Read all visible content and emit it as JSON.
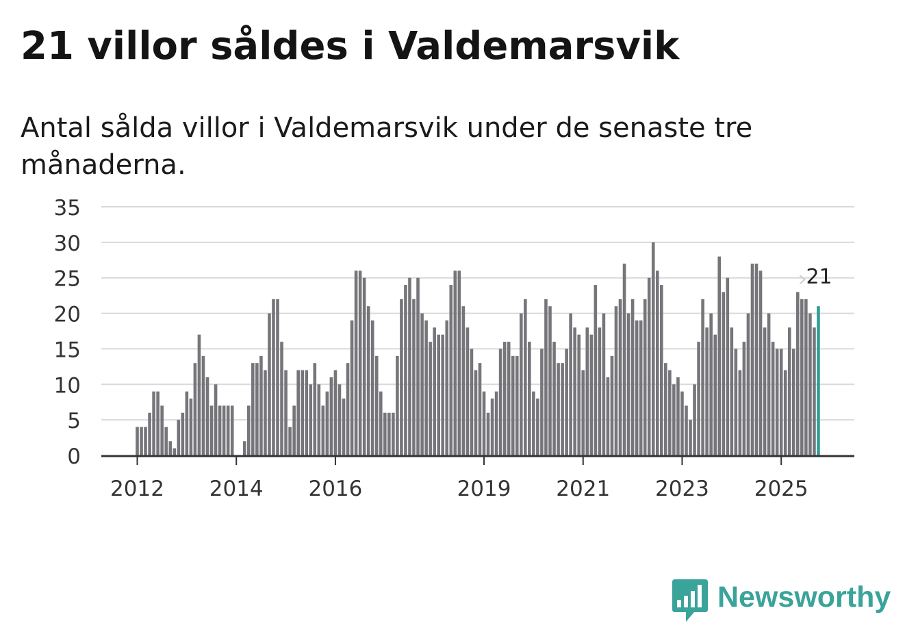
{
  "title": "21 villor såldes i Valdemarsvik",
  "subtitle": "Antal sålda villor i Valdemarsvik under de senaste tre månaderna.",
  "brand": {
    "name": "Newsworthy",
    "logo_icon": "bar-chart-bubble-icon"
  },
  "colors": {
    "bar": "#75757a",
    "highlight": "#2f9d95",
    "grid": "#d9d9d9",
    "axis": "#333333",
    "brand": "#3aa39a"
  },
  "chart_data": {
    "type": "bar",
    "title": "21 villor såldes i Valdemarsvik",
    "xlabel": "",
    "ylabel": "",
    "ylim": [
      0,
      35
    ],
    "yticks": [
      "0",
      "5",
      "10",
      "15",
      "20",
      "25",
      "30",
      "35"
    ],
    "x_start": 2012.0,
    "x_step_months": 1,
    "xticks": [
      {
        "label": "2012",
        "x": 2012.0
      },
      {
        "label": "2014",
        "x": 2014.0
      },
      {
        "label": "2016",
        "x": 2016.0
      },
      {
        "label": "2019",
        "x": 2019.0
      },
      {
        "label": "2021",
        "x": 2021.0
      },
      {
        "label": "2023",
        "x": 2023.0
      },
      {
        "label": "2025",
        "x": 2025.0
      }
    ],
    "values": [
      4,
      4,
      4,
      6,
      9,
      9,
      7,
      4,
      2,
      1,
      5,
      6,
      9,
      8,
      13,
      17,
      14,
      11,
      7,
      10,
      7,
      7,
      7,
      7,
      0,
      0,
      2,
      7,
      13,
      13,
      14,
      12,
      20,
      22,
      22,
      16,
      12,
      4,
      7,
      12,
      12,
      12,
      10,
      13,
      10,
      7,
      9,
      11,
      12,
      10,
      8,
      13,
      19,
      26,
      26,
      25,
      21,
      19,
      14,
      9,
      6,
      6,
      6,
      14,
      22,
      24,
      25,
      22,
      25,
      20,
      19,
      16,
      18,
      17,
      17,
      19,
      24,
      26,
      26,
      21,
      18,
      15,
      12,
      13,
      9,
      6,
      8,
      9,
      15,
      16,
      16,
      14,
      14,
      20,
      22,
      16,
      9,
      8,
      15,
      22,
      21,
      16,
      13,
      13,
      15,
      20,
      18,
      17,
      12,
      18,
      17,
      24,
      18,
      20,
      11,
      14,
      21,
      22,
      27,
      20,
      22,
      19,
      19,
      22,
      25,
      30,
      26,
      24,
      13,
      12,
      10,
      11,
      9,
      7,
      5,
      10,
      16,
      22,
      18,
      20,
      17,
      28,
      23,
      25,
      18,
      15,
      12,
      16,
      20,
      27,
      27,
      26,
      18,
      20,
      16,
      15,
      15,
      12,
      18,
      15,
      23,
      22,
      22,
      20,
      18,
      21
    ],
    "highlight": {
      "value": 21,
      "label": "21"
    }
  }
}
